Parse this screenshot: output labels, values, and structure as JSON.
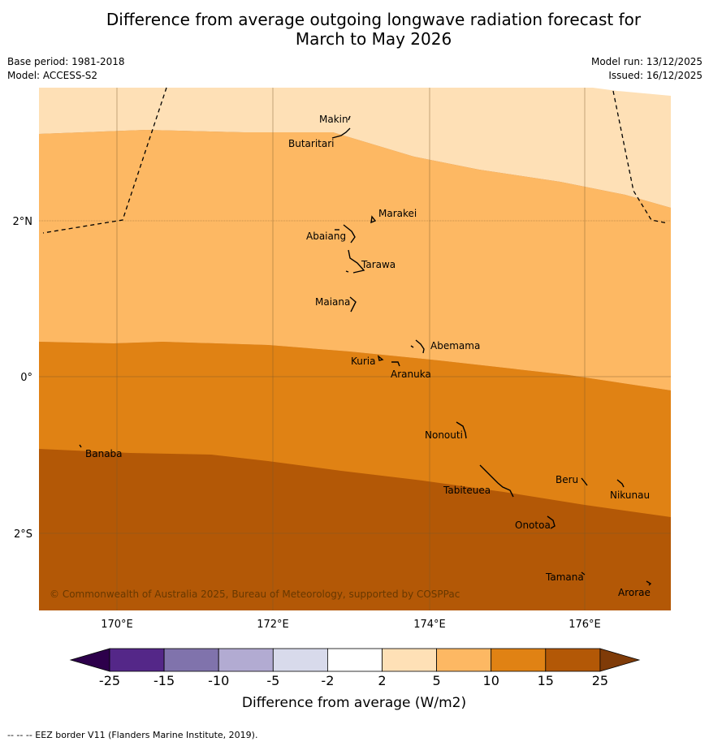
{
  "title_line1": "Difference from average outgoing longwave radiation forecast for",
  "title_line2": "March to May 2026",
  "meta_left": [
    "Base period: 1981-2018",
    "Model: ACCESS-S2"
  ],
  "meta_right": [
    "Model run: 13/12/2025",
    "Issued: 16/12/2025"
  ],
  "copyright": "© Commonwealth of Australia 2025, Bureau of Meteorology, supported by COSPPac",
  "axes": {
    "lat_labels": [
      "2°N",
      "0°",
      "2°S"
    ],
    "lon_labels": [
      "170°E",
      "172°E",
      "174°E",
      "176°E"
    ]
  },
  "places": [
    "Makin",
    "Butaritari",
    "Marakei",
    "Abaiang",
    "Tarawa",
    "Maiana",
    "Abemama",
    "Kuria",
    "Aranuka",
    "Nonouti",
    "Banaba",
    "Tabiteuea",
    "Beru",
    "Nikunau",
    "Onotoa",
    "Tamana",
    "Arorae"
  ],
  "colorbar": {
    "label": "Difference from average (W/m2)",
    "ticks": [
      "-25",
      "-15",
      "-10",
      "-5",
      "-2",
      "2",
      "5",
      "10",
      "15",
      "25"
    ],
    "colors": [
      "#2d004b",
      "#542788",
      "#8073ac",
      "#b2abd2",
      "#d8daeb",
      "#ffffff",
      "#fee0b6",
      "#fdb863",
      "#e08214",
      "#b35806",
      "#7f3b08"
    ]
  },
  "footer": "-- -- -- EEZ border V11 (Flanders Marine Institute, 2019)."
}
